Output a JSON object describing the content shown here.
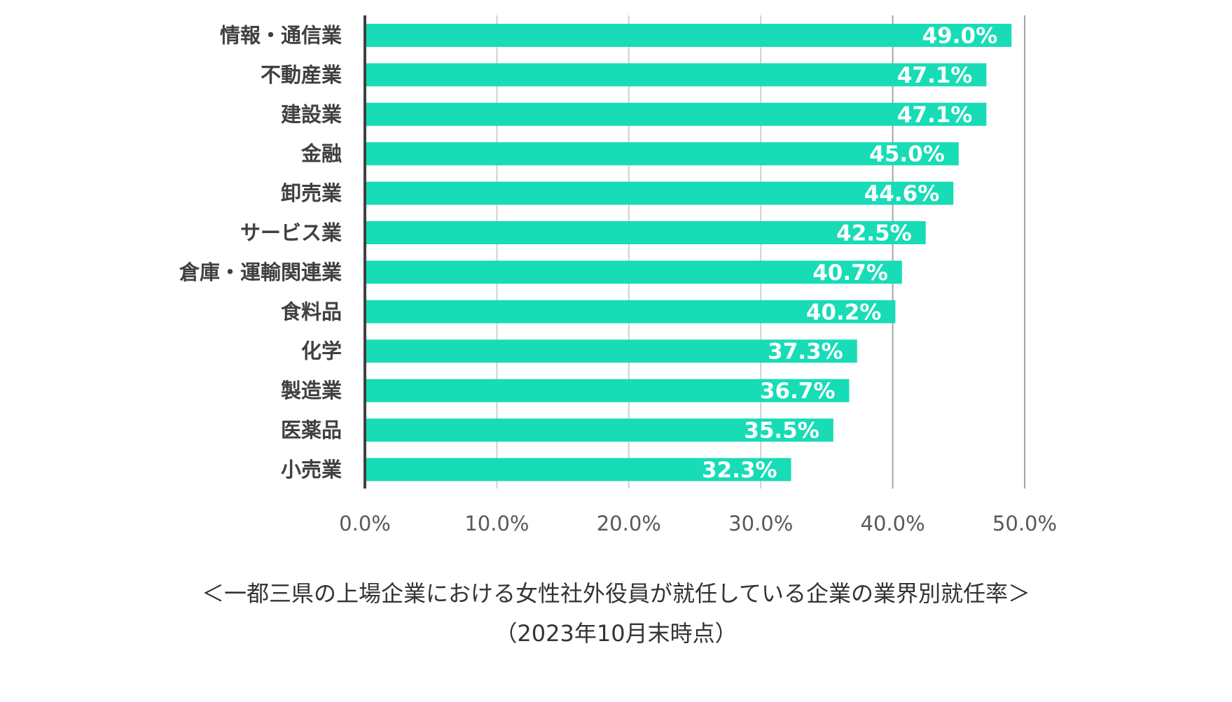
{
  "chart_data": {
    "type": "bar",
    "orientation": "horizontal",
    "categories": [
      "情報・通信業",
      "不動産業",
      "建設業",
      "金融",
      "卸売業",
      "サービス業",
      "倉庫・運輸関連業",
      "食料品",
      "化学",
      "製造業",
      "医薬品",
      "小売業"
    ],
    "values": [
      49.0,
      47.1,
      47.1,
      45.0,
      44.6,
      42.5,
      40.7,
      40.2,
      37.3,
      36.7,
      35.5,
      32.3
    ],
    "value_labels": [
      "49.0%",
      "47.1%",
      "47.1%",
      "45.0%",
      "44.6%",
      "42.5%",
      "40.7%",
      "40.2%",
      "37.3%",
      "36.7%",
      "35.5%",
      "32.3%"
    ],
    "xlim": [
      0,
      50
    ],
    "xticks": [
      0,
      10,
      20,
      30,
      40,
      50
    ],
    "xtick_labels": [
      "0.0%",
      "10.0%",
      "20.0%",
      "30.0%",
      "40.0%",
      "50.0%"
    ],
    "title": "",
    "xlabel": "",
    "ylabel": "",
    "grid": "vertical",
    "legend": "none",
    "bar_color": "#17dcb6",
    "grid_color_major": "#a6a6a6",
    "grid_color_minor": "#d0d0d0",
    "axis_color": "#404040"
  },
  "caption": {
    "line1": "＜一都三県の上場企業における女性社外役員が就任している企業の業界別就任率＞",
    "line2": "（2023年10月末時点）"
  }
}
